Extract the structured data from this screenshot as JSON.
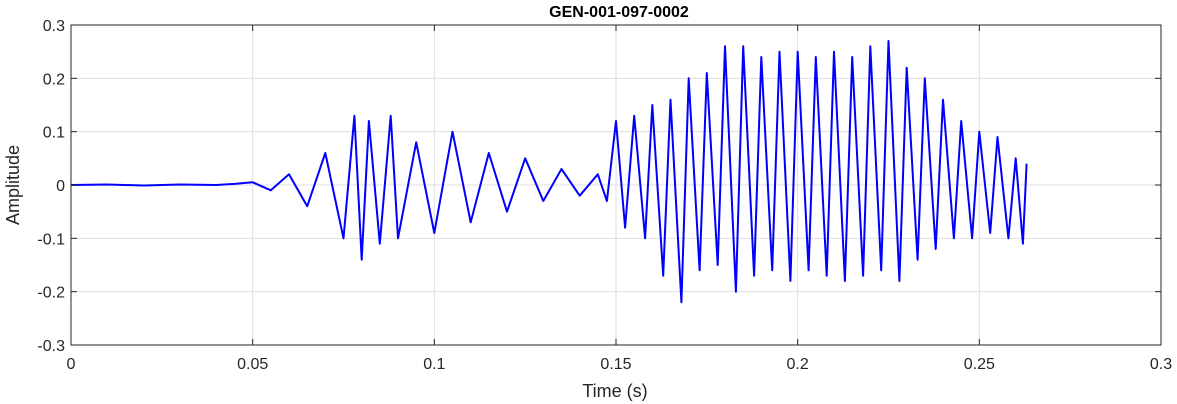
{
  "chart_data": {
    "type": "line",
    "title": "GEN-001-097-0002",
    "xlabel": "Time (s)",
    "ylabel": "Amplitude",
    "xlim": [
      0,
      0.3
    ],
    "ylim": [
      -0.3,
      0.3
    ],
    "xticks": [
      0,
      0.05,
      0.1,
      0.15,
      0.2,
      0.25,
      0.3
    ],
    "xtick_labels": [
      "0",
      "0.05",
      "0.1",
      "0.15",
      "0.2",
      "0.25",
      "0.3"
    ],
    "yticks": [
      -0.3,
      -0.2,
      -0.1,
      0,
      0.1,
      0.2,
      0.3
    ],
    "ytick_labels": [
      "-0.3",
      "-0.2",
      "-0.1",
      "0",
      "0.1",
      "0.2",
      "0.3"
    ],
    "grid": true,
    "line_color": "#0000ff",
    "series": [
      {
        "x": [
          0,
          0.01,
          0.02,
          0.03,
          0.04,
          0.045,
          0.05,
          0.055,
          0.06,
          0.065,
          0.07,
          0.075,
          0.078,
          0.08,
          0.082,
          0.085,
          0.088,
          0.09,
          0.095,
          0.1,
          0.105,
          0.11,
          0.115,
          0.12,
          0.125,
          0.13,
          0.135,
          0.14,
          0.145,
          0.1475,
          0.15,
          0.1525,
          0.155,
          0.158,
          0.16,
          0.163,
          0.165,
          0.168,
          0.17,
          0.173,
          0.175,
          0.178,
          0.18,
          0.183,
          0.185,
          0.188,
          0.19,
          0.193,
          0.195,
          0.198,
          0.2,
          0.203,
          0.205,
          0.208,
          0.21,
          0.213,
          0.215,
          0.218,
          0.22,
          0.223,
          0.225,
          0.228,
          0.23,
          0.233,
          0.235,
          0.238,
          0.24,
          0.243,
          0.245,
          0.248,
          0.25,
          0.253,
          0.255,
          0.258,
          0.26,
          0.262,
          0.263
        ],
        "y": [
          0,
          0.001,
          -0.001,
          0.001,
          0,
          0.002,
          0.005,
          -0.01,
          0.02,
          -0.04,
          0.06,
          -0.1,
          0.13,
          -0.14,
          0.12,
          -0.11,
          0.13,
          -0.1,
          0.08,
          -0.09,
          0.1,
          -0.07,
          0.06,
          -0.05,
          0.05,
          -0.03,
          0.03,
          -0.02,
          0.02,
          -0.03,
          0.12,
          -0.08,
          0.13,
          -0.1,
          0.15,
          -0.17,
          0.16,
          -0.22,
          0.2,
          -0.16,
          0.21,
          -0.15,
          0.26,
          -0.2,
          0.26,
          -0.17,
          0.24,
          -0.16,
          0.25,
          -0.18,
          0.25,
          -0.16,
          0.24,
          -0.17,
          0.25,
          -0.18,
          0.24,
          -0.17,
          0.26,
          -0.16,
          0.27,
          -0.18,
          0.22,
          -0.14,
          0.2,
          -0.12,
          0.16,
          -0.1,
          0.12,
          -0.1,
          0.1,
          -0.09,
          0.09,
          -0.1,
          0.05,
          -0.11,
          0.04
        ]
      }
    ]
  }
}
